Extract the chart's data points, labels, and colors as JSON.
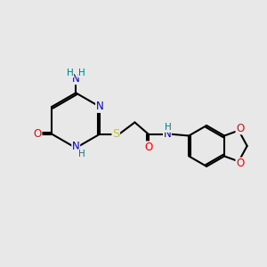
{
  "bg_color": "#e8e8e8",
  "atom_colors": {
    "C": "#000000",
    "N": "#0000cd",
    "O": "#ff0000",
    "S": "#cccc00",
    "H": "#008080"
  },
  "bond_color": "#000000",
  "font_size": 8.5
}
